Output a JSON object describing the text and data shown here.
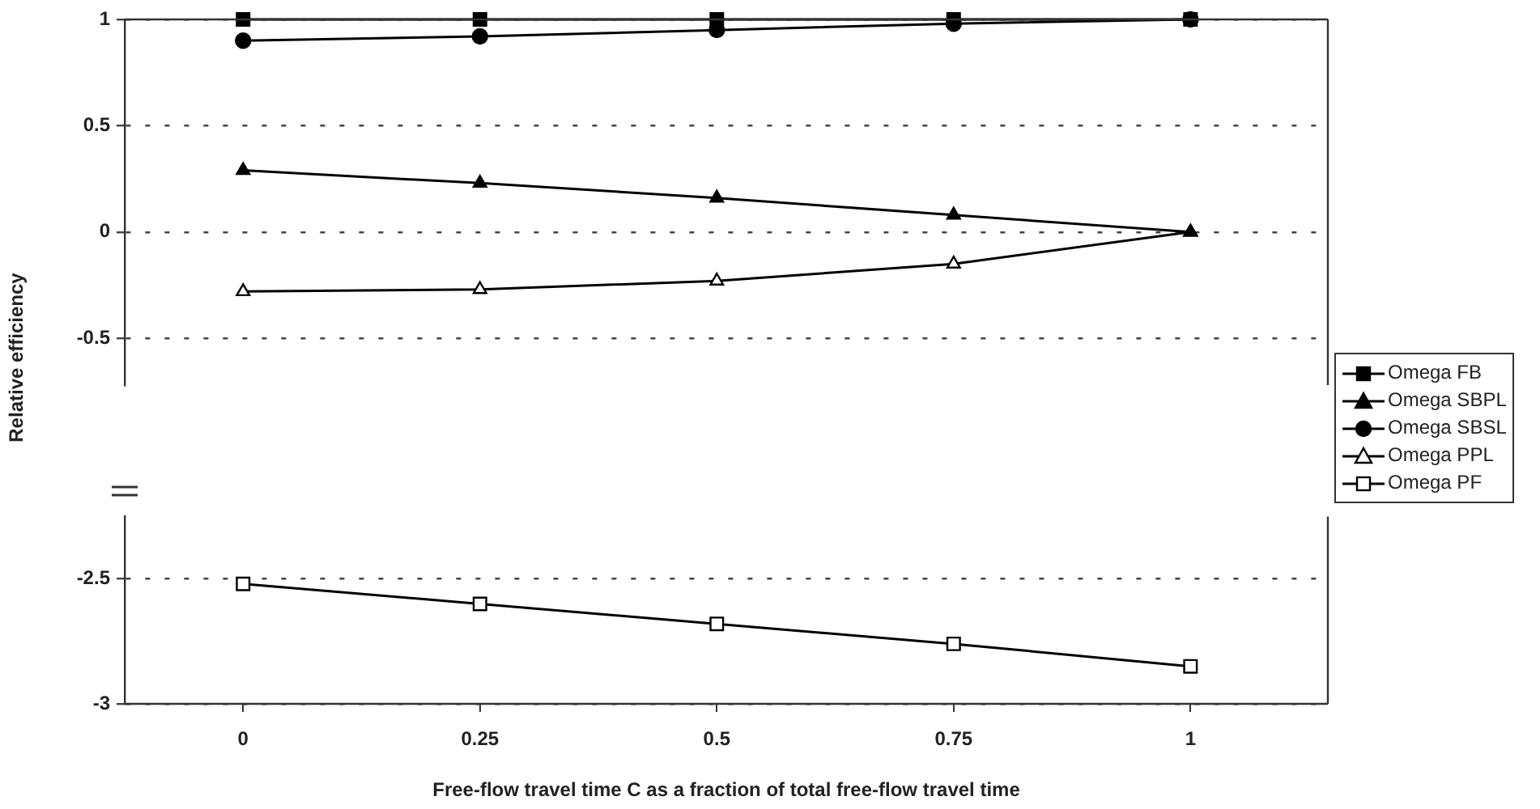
{
  "chart_data": [
    {
      "type": "line",
      "ylabel": "Relative efficiency",
      "x": [
        0,
        0.25,
        0.5,
        0.75,
        1
      ],
      "xlim": [
        -0.125,
        1.145
      ],
      "xticks": [
        0,
        0.25,
        0.5,
        0.75,
        1
      ],
      "ylim": [
        -0.72,
        1
      ],
      "yticks": [
        -0.5,
        0,
        0.5,
        1
      ],
      "grid": "y",
      "legend": "right",
      "tick_labels": "y",
      "line_style": "solid",
      "series": [
        {
          "name": "Omega FB",
          "color": "#000000",
          "marker": "square",
          "values": [
            1,
            1,
            1,
            1,
            1
          ]
        },
        {
          "name": "Omega SBPL",
          "color": "#000000",
          "marker": "triangle",
          "values": [
            0.29,
            0.23,
            0.16,
            0.08,
            0
          ]
        },
        {
          "name": "Omega SBSL",
          "color": "#000000",
          "marker": "circle",
          "values": [
            0.9,
            0.92,
            0.95,
            0.98,
            1
          ]
        },
        {
          "name": "Omega PPL",
          "color": "#000000",
          "marker": "triangle",
          "values": [
            -0.28,
            -0.27,
            -0.23,
            -0.15,
            0
          ]
        }
      ]
    },
    {
      "type": "line",
      "xlabel": "Free-flow travel time C as a fraction of total free-flow travel time",
      "x": [
        0,
        0.25,
        0.5,
        0.75,
        1
      ],
      "xlim": [
        -0.125,
        1.145
      ],
      "xticks": [
        0,
        0.25,
        0.5,
        0.75,
        1
      ],
      "ylim": [
        -3,
        -2.25
      ],
      "yticks": [
        -3,
        -2.5
      ],
      "grid": "y",
      "legend": "right",
      "line_style": "solid",
      "series": [
        {
          "name": "Omega PF",
          "color": "#000000",
          "marker": "square",
          "values": [
            -2.52,
            -2.6,
            -2.68,
            -2.76,
            -2.85
          ]
        }
      ]
    }
  ]
}
